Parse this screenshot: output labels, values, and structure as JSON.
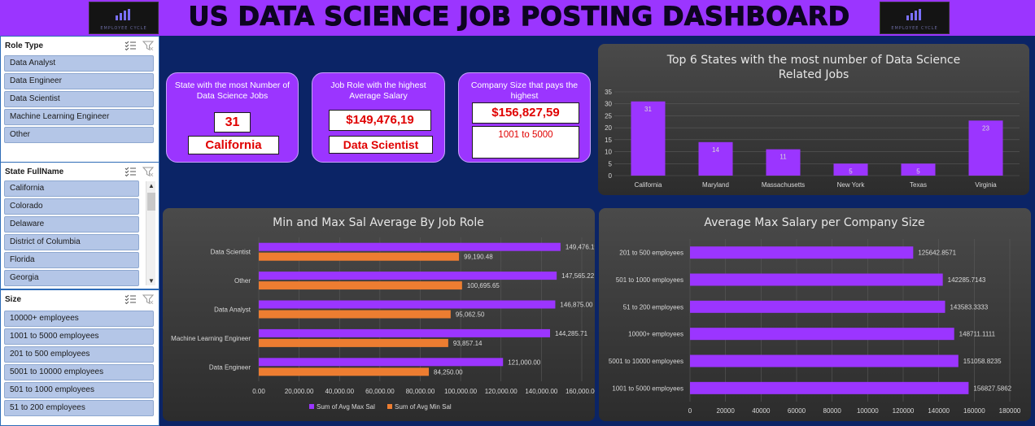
{
  "header": {
    "title": "US DATA SCIENCE JOB POSTING DASHBOARD",
    "logo_text": "EMPLOYEE CYCLE"
  },
  "slicers": {
    "role_type": {
      "title": "Role Type",
      "items": [
        "Data Analyst",
        "Data Engineer",
        "Data Scientist",
        "Machine Learning Engineer",
        "Other"
      ]
    },
    "state": {
      "title": "State FullName",
      "items": [
        "California",
        "Colorado",
        "Delaware",
        "District of Columbia",
        "Florida",
        "Georgia"
      ]
    },
    "size": {
      "title": "Size",
      "items": [
        "10000+ employees",
        "1001 to 5000 employees",
        "201 to 500 employees",
        "5001 to 10000 employees",
        "501 to 1000 employees",
        "51 to 200 employees"
      ]
    }
  },
  "kpis": {
    "state": {
      "label": "State with the most Number of Data Science Jobs",
      "value": "31",
      "name": "California"
    },
    "role": {
      "label": "Job Role with the highest Average Salary",
      "value": "$149,476,19",
      "name": "Data Scientist"
    },
    "company": {
      "label": "Company Size that pays the highest",
      "value": "$156,827,59",
      "name": "1001 to 5000"
    }
  },
  "colors": {
    "purple": "#9b35ff",
    "orange": "#ed7d31",
    "background": "#0b2466"
  },
  "chart_data": [
    {
      "id": "top_states",
      "type": "bar",
      "title": "Top 6 States with the most number of Data Science Related Jobs",
      "title_lines": [
        "Top 6 States with the most number of Data Science",
        "Related Jobs"
      ],
      "categories": [
        "California",
        "Maryland",
        "Massachusetts",
        "New York",
        "Texas",
        "Virginia"
      ],
      "values": [
        31,
        14,
        11,
        5,
        5,
        23
      ],
      "ylim": [
        0,
        35
      ],
      "yticks": [
        "0",
        "5",
        "10",
        "15",
        "20",
        "25",
        "30",
        "35"
      ],
      "grid": true
    },
    {
      "id": "min_max_role",
      "type": "bar",
      "orientation": "horizontal",
      "title": "Min and Max Sal Average By Job Role",
      "categories": [
        "Data Scientist",
        "Other",
        "Data Analyst",
        "Machine Learning Engineer",
        "Data Engineer"
      ],
      "series": [
        {
          "name": "Sum of Avg Max Sal",
          "values": [
            149476.19,
            147565.22,
            146875.0,
            144285.71,
            121000.0
          ],
          "labels": [
            "149,476.19",
            "147,565.22",
            "146,875.00",
            "144,285.71",
            "121,000.00"
          ]
        },
        {
          "name": "Sum of Avg Min Sal",
          "values": [
            99190.48,
            100695.65,
            95062.5,
            93857.14,
            84250.0
          ],
          "labels": [
            "99,190.48",
            "100,695.65",
            "95,062.50",
            "93,857.14",
            "84,250.00"
          ]
        }
      ],
      "xlim": [
        0,
        160000
      ],
      "xticks": [
        "0.00",
        "20,000.00",
        "40,000.00",
        "60,000.00",
        "80,000.00",
        "100,000.00",
        "120,000.00",
        "140,000.00",
        "160,000.00"
      ],
      "legend": "bottom",
      "grid": true
    },
    {
      "id": "company_size",
      "type": "bar",
      "orientation": "horizontal",
      "title": "Average Max Salary per Company Size",
      "categories": [
        "201 to 500 employees",
        "501 to 1000 employees",
        "51 to 200 employees",
        "10000+ employees",
        "5001 to 10000 employees",
        "1001 to 5000 employees"
      ],
      "values": [
        125642.8571,
        142285.7143,
        143583.3333,
        148711.1111,
        151058.8235,
        156827.5862
      ],
      "labels": [
        "125642.8571",
        "142285.7143",
        "143583.3333",
        "148711.1111",
        "151058.8235",
        "156827.5862"
      ],
      "xlim": [
        0,
        180000
      ],
      "xticks": [
        "0",
        "20000",
        "40000",
        "60000",
        "80000",
        "100000",
        "120000",
        "140000",
        "160000",
        "180000"
      ],
      "grid": true
    }
  ]
}
